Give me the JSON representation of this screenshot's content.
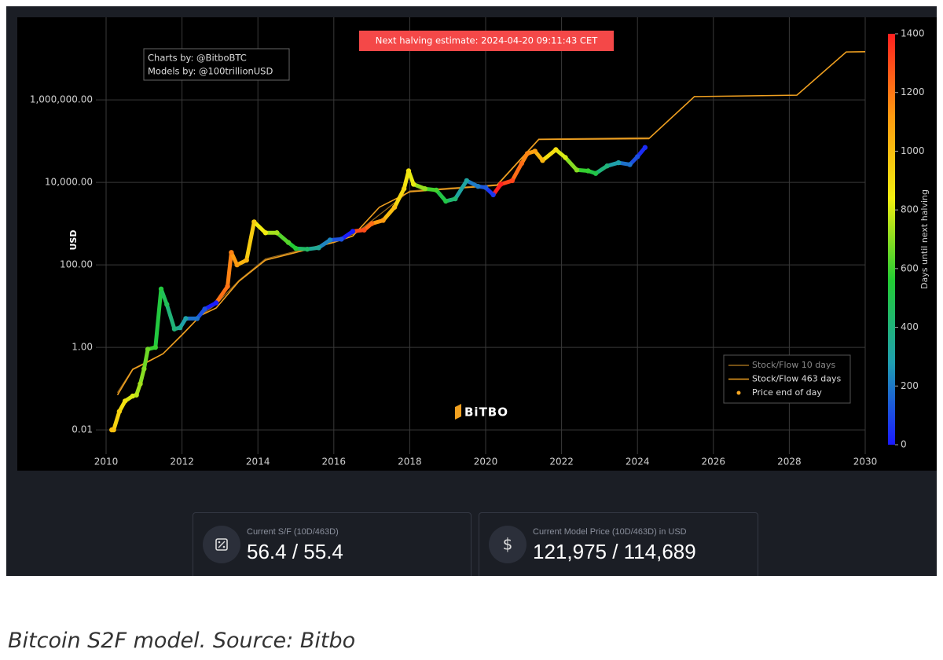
{
  "chart_data": {
    "type": "scatter",
    "y_label": "USD",
    "log_y": true,
    "grid": true,
    "legend": "lower right",
    "annotation": "Next halving estimate: 2024-04-20 09:11:43 CET",
    "credits": [
      "Charts by: @BitboBTC",
      "Models by: @100trillionUSD"
    ],
    "logo": "BiTBO",
    "xlim": [
      2010,
      2030
    ],
    "xticks": [
      2010,
      2012,
      2014,
      2016,
      2018,
      2020,
      2022,
      2024,
      2026,
      2028,
      2030
    ],
    "ylim": [
      0.004,
      40000000
    ],
    "yticks": [
      {
        "value": 0.01,
        "label": "0.01"
      },
      {
        "value": 1,
        "label": "1.00"
      },
      {
        "value": 100,
        "label": "100.00"
      },
      {
        "value": 10000,
        "label": "10,000.00"
      },
      {
        "value": 1000000,
        "label": "1,000,000.00"
      }
    ],
    "colorbar": {
      "title": "Days until next halving",
      "lim": [
        0,
        1400
      ],
      "ticks": [
        0,
        200,
        400,
        600,
        800,
        1000,
        1200,
        1400
      ],
      "colorscale": [
        "#1a1aff",
        "#1f9fb0",
        "#22cc33",
        "#f2ee10",
        "#ff9a10",
        "#ff2020"
      ]
    },
    "series": [
      {
        "name": "Stock/Flow 10 days",
        "type": "line",
        "color": "#9a6a1c",
        "x": [
          2010.3,
          2010.7,
          2011.5,
          2012.5,
          2012.9,
          2013.5,
          2014.2,
          2016.0,
          2016.6,
          2018.0,
          2020.3,
          2021.4,
          2024.3
        ],
        "values": [
          0.08,
          0.3,
          0.7,
          6,
          11,
          42,
          140,
          360,
          600,
          6200,
          8800,
          112000,
          121975
        ]
      },
      {
        "name": "Stock/Flow 463 days",
        "type": "line",
        "color": "#f0a020",
        "x": [
          2010.3,
          2010.7,
          2011.0,
          2011.5,
          2012.0,
          2012.5,
          2012.9,
          2013.5,
          2014.2,
          2015.0,
          2016.0,
          2016.5,
          2017.2,
          2018.0,
          2020.3,
          2021.4,
          2024.3,
          2025.5,
          2028.2,
          2029.5,
          2030.0
        ],
        "values": [
          0.07,
          0.29,
          0.4,
          0.7,
          2,
          6,
          9,
          40,
          130,
          200,
          350,
          500,
          2500,
          5900,
          8500,
          110000,
          114689,
          1200000,
          1300000,
          14500000,
          14700000
        ]
      },
      {
        "name": "Price end of day",
        "type": "scatter",
        "color": "#f5a623",
        "x": [
          2010.15,
          2010.2,
          2010.35,
          2010.5,
          2010.7,
          2010.8,
          2010.9,
          2011.0,
          2011.1,
          2011.3,
          2011.45,
          2011.6,
          2011.8,
          2011.95,
          2012.1,
          2012.4,
          2012.6,
          2012.9,
          2013.2,
          2013.3,
          2013.45,
          2013.7,
          2013.9,
          2014.2,
          2014.5,
          2014.8,
          2015.0,
          2015.3,
          2015.6,
          2015.9,
          2016.2,
          2016.5,
          2016.8,
          2017.0,
          2017.3,
          2017.6,
          2017.85,
          2017.97,
          2018.1,
          2018.4,
          2018.7,
          2018.95,
          2019.2,
          2019.5,
          2019.8,
          2020.0,
          2020.2,
          2020.4,
          2020.7,
          2020.95,
          2021.1,
          2021.3,
          2021.5,
          2021.85,
          2022.1,
          2022.4,
          2022.7,
          2022.9,
          2023.2,
          2023.5,
          2023.8,
          2024.0,
          2024.2
        ],
        "values": [
          0.01,
          0.01,
          0.028,
          0.05,
          0.066,
          0.07,
          0.13,
          0.3,
          0.9,
          1.0,
          26,
          11,
          2.8,
          3,
          5,
          5,
          8.5,
          12,
          30,
          200,
          100,
          130,
          1100,
          600,
          600,
          350,
          250,
          240,
          260,
          400,
          420,
          650,
          700,
          1000,
          1200,
          2500,
          7000,
          19000,
          9000,
          7000,
          6500,
          3500,
          4000,
          11000,
          8000,
          7500,
          5000,
          9000,
          11000,
          29000,
          50000,
          57000,
          34000,
          62000,
          40000,
          20000,
          19000,
          16500,
          25000,
          30000,
          27000,
          42000,
          70000
        ],
        "color_values": [
          1007,
          989,
          934,
          880,
          807,
          770,
          734,
          697,
          661,
          588,
          533,
          478,
          405,
          350,
          296,
          186,
          113,
          4,
          1212,
          1176,
          1121,
          1030,
          957,
          847,
          737,
          628,
          555,
          445,
          336,
          226,
          117,
          7,
          1299,
          1226,
          1117,
          1008,
          916,
          873,
          825,
          716,
          606,
          515,
          423,
          314,
          204,
          131,
          58,
          1400,
          1314,
          1223,
          1168,
          1095,
          1022,
          894,
          803,
          694,
          584,
          511,
          402,
          292,
          183,
          110,
          37
        ]
      }
    ]
  },
  "stats": [
    {
      "label": "Current S/F (10D/463D)",
      "value": "56.4 / 55.4"
    },
    {
      "label": "Current Model Price (10D/463D) in USD",
      "value": "121,975 / 114,689"
    }
  ],
  "caption": "Bitcoin S2F model. Source: Bitbo"
}
